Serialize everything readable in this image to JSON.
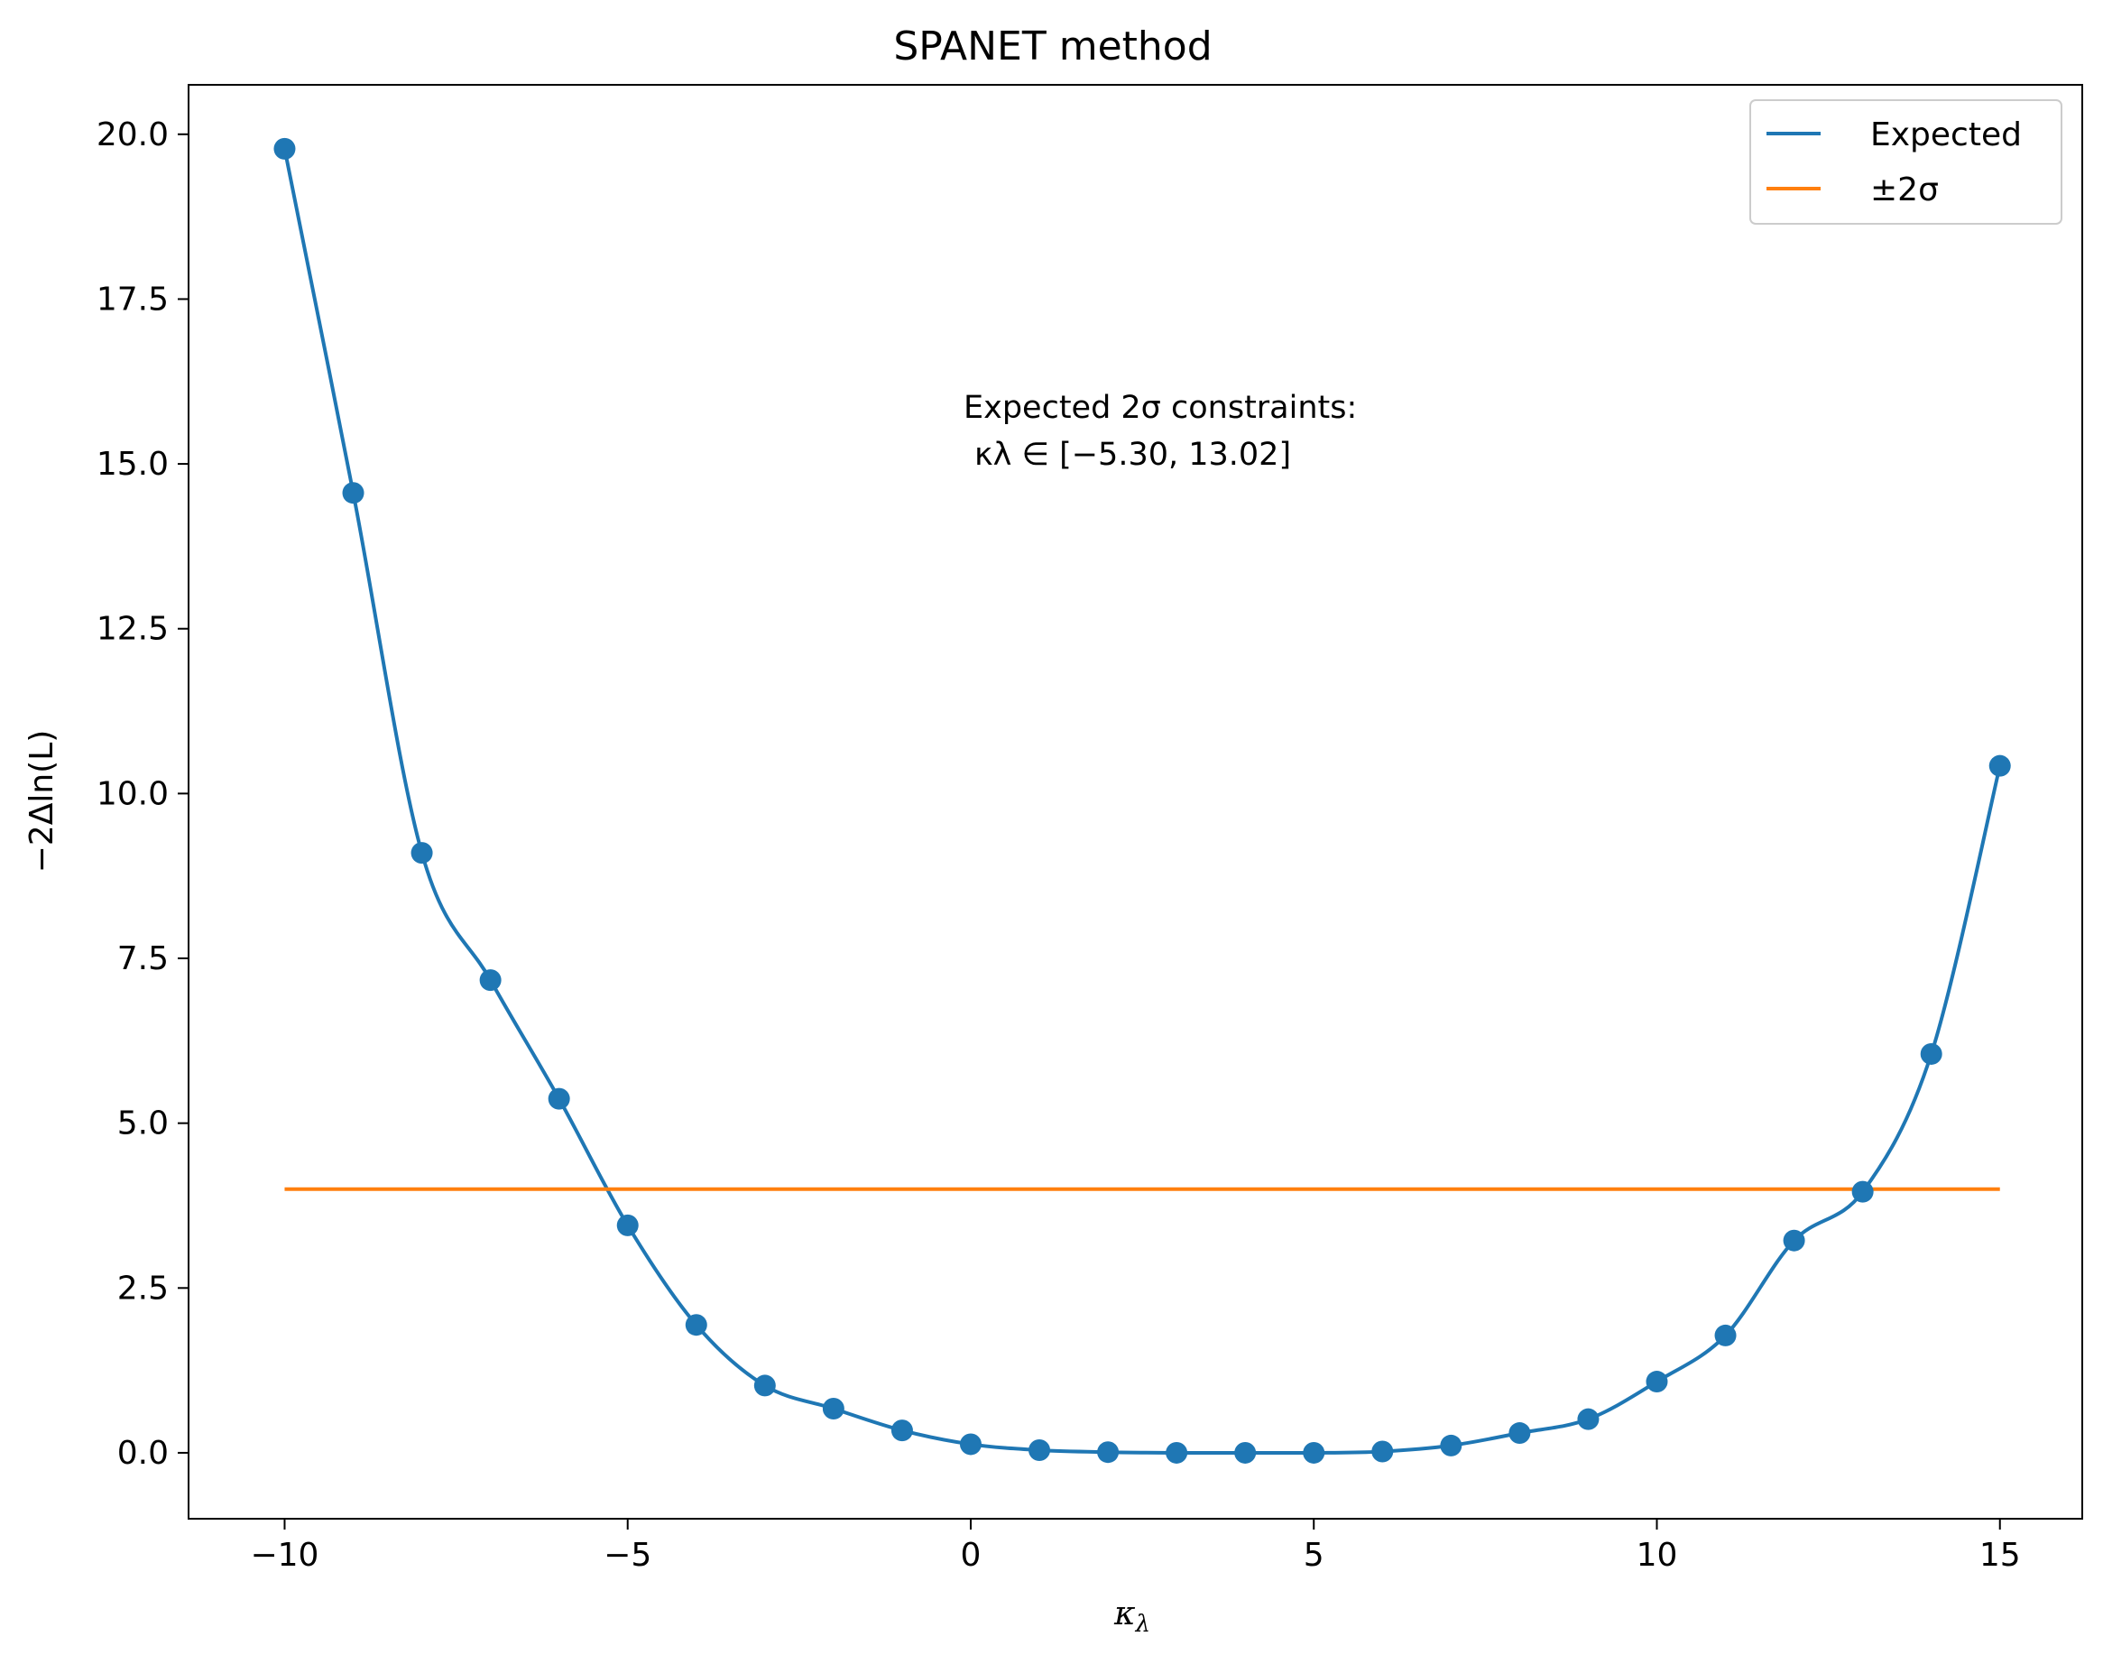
{
  "chart_data": {
    "type": "line",
    "title": "SPANET method",
    "xlabel": "κ",
    "xlabel_sub": "λ",
    "ylabel": "−2Δln(L)",
    "xlim": [
      -11.4,
      16.2
    ],
    "ylim": [
      -1.0,
      20.75
    ],
    "xticks": [
      -10,
      -5,
      0,
      5,
      10,
      15
    ],
    "xtick_labels": [
      "−10",
      "−5",
      "0",
      "5",
      "10",
      "15"
    ],
    "yticks": [
      0.0,
      2.5,
      5.0,
      7.5,
      10.0,
      12.5,
      15.0,
      17.5,
      20.0
    ],
    "ytick_labels": [
      "0.0",
      "2.5",
      "5.0",
      "7.5",
      "10.0",
      "12.5",
      "15.0",
      "17.5",
      "20.0"
    ],
    "grid": false,
    "legend_position": "top-right",
    "series": [
      {
        "name": "Expected",
        "color": "#1f77b4",
        "x": [
          -10,
          -9,
          -8,
          -7,
          -6,
          -5,
          -4,
          -3,
          -2,
          -1,
          0,
          1,
          2,
          3,
          4,
          5,
          6,
          7,
          8,
          9,
          10,
          11,
          12,
          13,
          14,
          15
        ],
        "y": [
          19.78,
          14.56,
          9.1,
          7.17,
          5.37,
          3.45,
          1.94,
          1.02,
          0.67,
          0.34,
          0.13,
          0.04,
          0.01,
          0.0,
          0.0,
          0.0,
          0.02,
          0.11,
          0.3,
          0.51,
          1.08,
          1.78,
          3.22,
          3.96,
          6.05,
          10.42
        ]
      },
      {
        "name": "±2σ",
        "color": "#ff7f0e",
        "x": [
          -10,
          15
        ],
        "y": [
          4.0,
          4.0
        ]
      }
    ],
    "annotation": {
      "line1": "Expected 2σ constraints:",
      "line2": "κλ ∈ [−5.30, 13.02]",
      "x": 0.0,
      "y": 15.6
    }
  }
}
